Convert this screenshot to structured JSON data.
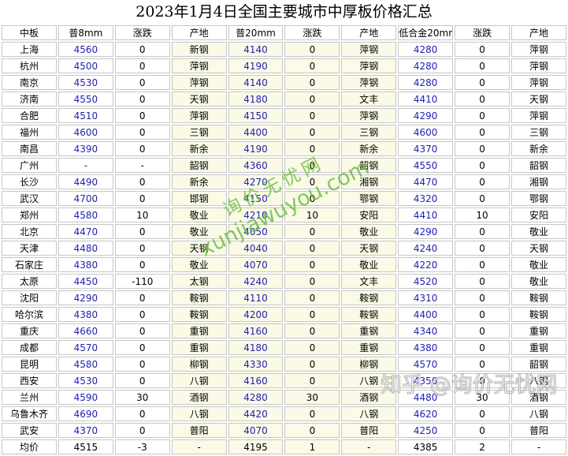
{
  "title": "2023年1月4日全国主要城市中厚板价格汇总",
  "table": {
    "headers": [
      "中板",
      "普8mm",
      "涨跌",
      "产地",
      "普20mm",
      "涨跌",
      "产地",
      "低合金20mm",
      "涨跌",
      "产地"
    ],
    "rows": [
      [
        "上海",
        "4560",
        "0",
        "新钢",
        "4140",
        "0",
        "萍钢",
        "4280",
        "0",
        "萍钢"
      ],
      [
        "杭州",
        "4500",
        "0",
        "萍钢",
        "4190",
        "0",
        "萍钢",
        "4280",
        "0",
        "萍钢"
      ],
      [
        "南京",
        "4530",
        "0",
        "萍钢",
        "4140",
        "0",
        "萍钢",
        "4280",
        "0",
        "萍钢"
      ],
      [
        "济南",
        "4550",
        "0",
        "天钢",
        "4180",
        "0",
        "文丰",
        "4410",
        "0",
        "天钢"
      ],
      [
        "合肥",
        "4510",
        "0",
        "萍钢",
        "4150",
        "0",
        "萍钢",
        "4290",
        "0",
        "萍钢"
      ],
      [
        "福州",
        "4600",
        "0",
        "三钢",
        "4400",
        "0",
        "三钢",
        "4600",
        "0",
        "三钢"
      ],
      [
        "南昌",
        "4390",
        "0",
        "新余",
        "4190",
        "0",
        "新余",
        "4370",
        "0",
        "新余"
      ],
      [
        "广州",
        "-",
        "-",
        "韶钢",
        "4360",
        "0",
        "韶钢",
        "4550",
        "0",
        "韶钢"
      ],
      [
        "长沙",
        "4490",
        "0",
        "新余",
        "4270",
        "0",
        "湘钢",
        "4470",
        "0",
        "湘钢"
      ],
      [
        "武汉",
        "4700",
        "0",
        "邯钢",
        "4150",
        "0",
        "鄂钢",
        "4320",
        "0",
        "鄂钢"
      ],
      [
        "郑州",
        "4580",
        "10",
        "敬业",
        "4210",
        "10",
        "安阳",
        "4410",
        "10",
        "安阳"
      ],
      [
        "北京",
        "4470",
        "0",
        "敬业",
        "4050",
        "0",
        "敬业",
        "4290",
        "0",
        "敬业"
      ],
      [
        "天津",
        "4480",
        "0",
        "天钢",
        "4040",
        "0",
        "天钢",
        "4240",
        "0",
        "天钢"
      ],
      [
        "石家庄",
        "4380",
        "0",
        "敬业",
        "4070",
        "0",
        "敬业",
        "4220",
        "0",
        "敬业"
      ],
      [
        "太原",
        "4450",
        "-110",
        "太钢",
        "4240",
        "0",
        "文丰",
        "4520",
        "0",
        "敬业"
      ],
      [
        "沈阳",
        "4290",
        "0",
        "鞍钢",
        "4110",
        "0",
        "鞍钢",
        "4310",
        "0",
        "鞍钢"
      ],
      [
        "哈尔滨",
        "4380",
        "0",
        "鞍钢",
        "4200",
        "0",
        "鞍钢",
        "4400",
        "0",
        "鞍钢"
      ],
      [
        "重庆",
        "4660",
        "0",
        "重钢",
        "4160",
        "0",
        "重钢",
        "4340",
        "0",
        "重钢"
      ],
      [
        "成都",
        "4570",
        "0",
        "重钢",
        "4180",
        "0",
        "重钢",
        "4380",
        "0",
        "重钢"
      ],
      [
        "昆明",
        "4580",
        "0",
        "柳钢",
        "4330",
        "0",
        "柳钢",
        "4570",
        "0",
        "韶钢"
      ],
      [
        "西安",
        "4530",
        "0",
        "八钢",
        "4160",
        "0",
        "八钢",
        "4350",
        "0",
        "八钢"
      ],
      [
        "兰州",
        "4590",
        "30",
        "酒钢",
        "4280",
        "30",
        "酒钢",
        "4480",
        "30",
        "酒钢"
      ],
      [
        "乌鲁木齐",
        "4690",
        "0",
        "八钢",
        "4420",
        "0",
        "八钢",
        "4620",
        "0",
        "八钢"
      ],
      [
        "武安",
        "4370",
        "0",
        "普阳",
        "4070",
        "0",
        "普阳",
        "4250",
        "0",
        "普阳"
      ],
      [
        "均价",
        "4515",
        "-3",
        "-",
        "4195",
        "1",
        "-",
        "4385",
        "2",
        "-"
      ]
    ]
  },
  "watermarks": {
    "diagonal_line1": "询价无忧网",
    "diagonal_line2": "xunjiawuyou.com",
    "corner_text": "知乎 @询价无忧网"
  },
  "colors": {
    "price_text": "#2121b4",
    "cream_cell": "#fafae6",
    "grid_border": "#c6c6c6",
    "watermark_green": "#69be3a"
  }
}
